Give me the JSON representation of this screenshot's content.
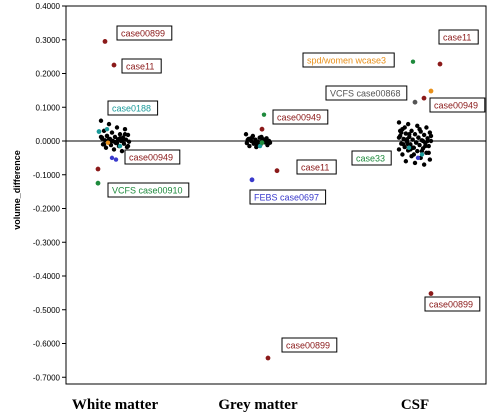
{
  "chart_data": {
    "type": "scatter",
    "ylabel": "volume_difference",
    "xlabel": "",
    "ylim": [
      -0.72,
      0.4
    ],
    "yticks": [
      0.4,
      0.3,
      0.2,
      0.1,
      0.0,
      -0.1,
      -0.2,
      -0.3,
      -0.4,
      -0.5,
      -0.6,
      -0.7
    ],
    "ytick_labels": [
      "0.4000",
      "0.3000",
      "0.2000",
      "0.1000",
      "0.0000",
      "-0.1000",
      "-0.2000",
      "-0.3000",
      "-0.4000",
      "-0.5000",
      "-0.6000",
      "-0.7000"
    ],
    "categories": [
      "White matter",
      "Grey matter",
      "CSF"
    ],
    "reference_line": 0.0,
    "grid": false,
    "colors": {
      "darkred": "#8b1a1a",
      "teal": "#1a9a9a",
      "green": "#1e8a3c",
      "blue": "#3a3acc",
      "orange": "#e8901a",
      "gray": "#555555",
      "black": "#000000"
    },
    "highlighted_points": [
      {
        "category": "White matter",
        "value": 0.295,
        "color": "darkred",
        "label": "case00899"
      },
      {
        "category": "White matter",
        "value": 0.225,
        "color": "darkred",
        "label": "case11"
      },
      {
        "category": "White matter",
        "value": 0.028,
        "color": "teal",
        "label": "case0188"
      },
      {
        "category": "White matter",
        "value": -0.083,
        "color": "darkred",
        "label": "case00949"
      },
      {
        "category": "White matter",
        "value": -0.125,
        "color": "green",
        "label": "VCFS case00910"
      },
      {
        "category": "Grey matter",
        "value": 0.035,
        "color": "darkred",
        "label": "case00949"
      },
      {
        "category": "Grey matter",
        "value": -0.088,
        "color": "darkred",
        "label": "case11"
      },
      {
        "category": "Grey matter",
        "value": -0.115,
        "color": "blue",
        "label": "FEBS case0697"
      },
      {
        "category": "Grey matter",
        "value": -0.643,
        "color": "darkred",
        "label": "case00899"
      },
      {
        "category": "Grey matter",
        "value": -0.005,
        "color": "green",
        "label": "case33"
      },
      {
        "category": "CSF",
        "value": 0.228,
        "color": "darkred",
        "label": "case11"
      },
      {
        "category": "CSF",
        "value": 0.148,
        "color": "orange",
        "label": "spd/women wcase3"
      },
      {
        "category": "CSF",
        "value": 0.115,
        "color": "gray",
        "label": "VCFS case00868"
      },
      {
        "category": "CSF",
        "value": 0.127,
        "color": "darkred",
        "label": "case00949"
      },
      {
        "category": "CSF",
        "value": -0.452,
        "color": "darkred",
        "label": "case00899"
      }
    ],
    "extra_points": [
      {
        "category": "White matter",
        "value": 0.035,
        "color": "teal"
      },
      {
        "category": "White matter",
        "value": -0.015,
        "color": "teal"
      },
      {
        "category": "White matter",
        "value": -0.055,
        "color": "blue"
      },
      {
        "category": "White matter",
        "value": -0.05,
        "color": "blue"
      },
      {
        "category": "White matter",
        "value": -0.005,
        "color": "orange"
      },
      {
        "category": "Grey matter",
        "value": 0.078,
        "color": "green"
      },
      {
        "category": "Grey matter",
        "value": -0.015,
        "color": "teal"
      },
      {
        "category": "CSF",
        "value": 0.235,
        "color": "green"
      },
      {
        "category": "CSF",
        "value": -0.02,
        "color": "teal"
      },
      {
        "category": "CSF",
        "value": -0.04,
        "color": "teal"
      },
      {
        "category": "CSF",
        "value": -0.05,
        "color": "blue"
      }
    ],
    "cluster_points": {
      "White matter": [
        0.06,
        0.05,
        0.04,
        0.035,
        0.03,
        0.025,
        0.02,
        0.018,
        0.015,
        0.012,
        0.01,
        0.008,
        0.006,
        0.005,
        0.004,
        0.002,
        0.0,
        0.0,
        -0.002,
        -0.004,
        -0.006,
        -0.008,
        -0.01,
        -0.012,
        -0.015,
        -0.018,
        -0.02,
        -0.025,
        -0.03,
        0.012,
        0.005,
        -0.005,
        0.02,
        -0.01,
        0.0,
        0.008,
        -0.015,
        0.015,
        -0.003,
        0.003,
        0.01,
        -0.007
      ],
      "Grey matter": [
        0.02,
        0.015,
        0.01,
        0.008,
        0.006,
        0.004,
        0.002,
        0.0,
        0.0,
        -0.002,
        -0.004,
        -0.006,
        -0.008,
        -0.01,
        -0.012,
        -0.015,
        -0.018,
        0.005,
        -0.005,
        0.01,
        -0.01,
        0.0,
        0.003,
        -0.003,
        0.012,
        -0.007,
        0.007,
        -0.012
      ],
      "CSF": [
        0.055,
        0.05,
        0.045,
        0.04,
        0.035,
        0.03,
        0.028,
        0.025,
        0.022,
        0.02,
        0.018,
        0.015,
        0.012,
        0.01,
        0.008,
        0.006,
        0.004,
        0.002,
        0.0,
        -0.002,
        -0.004,
        -0.006,
        -0.008,
        -0.01,
        -0.012,
        -0.015,
        -0.018,
        -0.02,
        -0.022,
        -0.025,
        -0.028,
        -0.03,
        -0.035,
        -0.04,
        -0.045,
        -0.05,
        -0.055,
        -0.06,
        -0.065,
        -0.07,
        0.03,
        0.02,
        0.01,
        0.0,
        -0.01,
        -0.02,
        -0.03,
        0.015,
        0.005,
        -0.005,
        -0.015,
        0.025,
        -0.025,
        0.035,
        -0.035,
        0.04,
        -0.04,
        0.0,
        0.01,
        -0.01
      ]
    }
  }
}
